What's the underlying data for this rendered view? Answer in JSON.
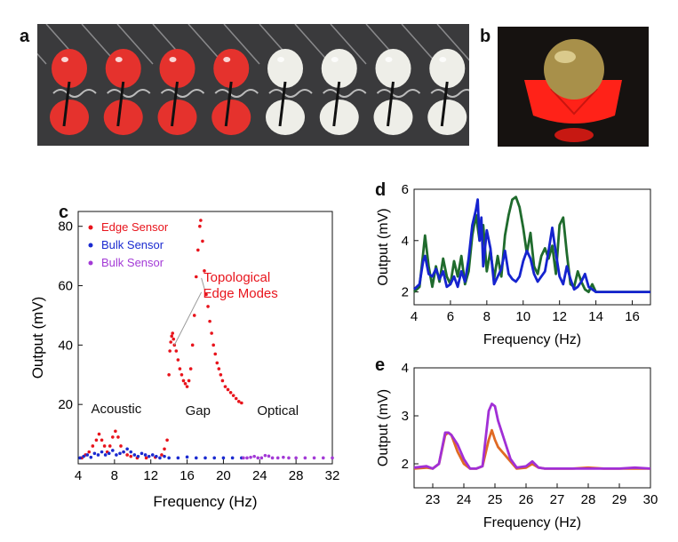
{
  "panels": {
    "a": {
      "letter": "a"
    },
    "b": {
      "letter": "b"
    },
    "c": {
      "letter": "c"
    },
    "d": {
      "letter": "d"
    },
    "e": {
      "letter": "e"
    }
  },
  "photos": {
    "a": {
      "background": "#3a3a3c",
      "robot_red": "#e5322d",
      "robot_white": "#eeeee8",
      "red_count": 4,
      "white_count": 4
    },
    "b": {
      "background": "#161210",
      "base_color": "#ff2218",
      "ball_color": "#a8904a"
    }
  },
  "chart_data": [
    {
      "id": "c",
      "type": "scatter",
      "xlabel": "Frequency (Hz)",
      "ylabel": "Output (mV)",
      "xlim": [
        4,
        32
      ],
      "ylim": [
        0,
        85
      ],
      "xticks": [
        4,
        8,
        12,
        16,
        20,
        24,
        28,
        32
      ],
      "yticks": [
        20,
        40,
        60,
        80
      ],
      "grid": false,
      "legend_position": "top-left",
      "series": [
        {
          "name": "Edge Sensor",
          "color": "#e8141c",
          "points": [
            [
              4.4,
              2
            ],
            [
              4.8,
              3
            ],
            [
              5.2,
              4
            ],
            [
              5.6,
              6
            ],
            [
              6.0,
              8
            ],
            [
              6.3,
              10
            ],
            [
              6.6,
              8
            ],
            [
              6.9,
              6
            ],
            [
              7.2,
              4
            ],
            [
              7.5,
              6
            ],
            [
              7.8,
              9
            ],
            [
              8.1,
              11
            ],
            [
              8.4,
              9
            ],
            [
              8.7,
              6
            ],
            [
              9.0,
              4
            ],
            [
              9.4,
              3
            ],
            [
              9.8,
              2.5
            ],
            [
              10.5,
              2
            ],
            [
              11.5,
              2
            ],
            [
              12.5,
              2.2
            ],
            [
              13.2,
              3
            ],
            [
              13.5,
              5
            ],
            [
              13.8,
              8
            ],
            [
              14.0,
              30
            ],
            [
              14.1,
              38
            ],
            [
              14.2,
              41
            ],
            [
              14.3,
              43
            ],
            [
              14.4,
              44
            ],
            [
              14.5,
              42
            ],
            [
              14.6,
              40
            ],
            [
              14.8,
              38
            ],
            [
              15.0,
              35
            ],
            [
              15.2,
              32
            ],
            [
              15.4,
              30
            ],
            [
              15.6,
              28
            ],
            [
              15.8,
              27
            ],
            [
              16.0,
              26
            ],
            [
              16.2,
              28
            ],
            [
              16.4,
              32
            ],
            [
              16.6,
              40
            ],
            [
              16.8,
              50
            ],
            [
              17.0,
              63
            ],
            [
              17.2,
              72
            ],
            [
              17.4,
              80
            ],
            [
              17.5,
              82
            ],
            [
              17.7,
              75
            ],
            [
              17.9,
              65
            ],
            [
              18.1,
              57
            ],
            [
              18.3,
              53
            ],
            [
              18.5,
              48
            ],
            [
              18.7,
              44
            ],
            [
              18.9,
              40
            ],
            [
              19.1,
              37
            ],
            [
              19.3,
              34
            ],
            [
              19.5,
              32
            ],
            [
              19.7,
              30
            ],
            [
              19.9,
              28
            ],
            [
              20.2,
              26
            ],
            [
              20.5,
              25
            ],
            [
              20.8,
              24
            ],
            [
              21.1,
              23
            ],
            [
              21.4,
              22
            ],
            [
              21.7,
              21
            ],
            [
              22.0,
              20.5
            ]
          ]
        },
        {
          "name": "Bulk Sensor",
          "color": "#1a2ad0",
          "points": [
            [
              4.2,
              2
            ],
            [
              4.6,
              2.5
            ],
            [
              5.0,
              3
            ],
            [
              5.4,
              2.2
            ],
            [
              5.8,
              3.5
            ],
            [
              6.2,
              3
            ],
            [
              6.6,
              4
            ],
            [
              7.0,
              3
            ],
            [
              7.4,
              3.5
            ],
            [
              7.8,
              4.5
            ],
            [
              8.2,
              3
            ],
            [
              8.6,
              3.5
            ],
            [
              9.0,
              4
            ],
            [
              9.4,
              5
            ],
            [
              9.8,
              4
            ],
            [
              10.2,
              3
            ],
            [
              10.6,
              2.5
            ],
            [
              11.0,
              3.5
            ],
            [
              11.4,
              3
            ],
            [
              11.8,
              2.5
            ],
            [
              12.2,
              3
            ],
            [
              12.6,
              2.5
            ],
            [
              13.0,
              2
            ],
            [
              13.5,
              2.5
            ],
            [
              14.0,
              2
            ],
            [
              15,
              2
            ],
            [
              16,
              2.3
            ],
            [
              17,
              2
            ],
            [
              18,
              2
            ],
            [
              19,
              2
            ],
            [
              20,
              2
            ],
            [
              21,
              2
            ],
            [
              22,
              2
            ]
          ]
        },
        {
          "name": "Bulk Sensor",
          "color": "#a33ad6",
          "points": [
            [
              22.2,
              2
            ],
            [
              22.6,
              2
            ],
            [
              23.0,
              2.2
            ],
            [
              23.4,
              2.5
            ],
            [
              23.8,
              2
            ],
            [
              24.2,
              2
            ],
            [
              24.6,
              2.8
            ],
            [
              25.0,
              2.6
            ],
            [
              25.4,
              2
            ],
            [
              26,
              2
            ],
            [
              26.6,
              2.2
            ],
            [
              27.2,
              2
            ],
            [
              28,
              2
            ],
            [
              29,
              2
            ],
            [
              30,
              2
            ],
            [
              31,
              2
            ],
            [
              32,
              2
            ]
          ]
        }
      ],
      "annotations": [
        {
          "text": "Topological",
          "pointer": [
            18.0,
            58
          ]
        },
        {
          "text": "Edge Modes",
          "pointer": [
            14.6,
            40
          ]
        },
        {
          "text": "Acoustic"
        },
        {
          "text": "Gap"
        },
        {
          "text": "Optical"
        }
      ]
    },
    {
      "id": "d",
      "type": "line",
      "xlabel": "Frequency (Hz)",
      "ylabel": "Output (mV)",
      "xlim": [
        4,
        17
      ],
      "ylim": [
        1.5,
        6
      ],
      "xticks": [
        4,
        6,
        8,
        10,
        12,
        14,
        16
      ],
      "yticks": [
        2,
        4,
        6
      ],
      "grid": false,
      "series": [
        {
          "color": "#1f6b2d",
          "x": [
            4.0,
            4.3,
            4.5,
            4.6,
            4.8,
            5.0,
            5.2,
            5.4,
            5.6,
            5.8,
            6.0,
            6.2,
            6.4,
            6.6,
            6.8,
            7.0,
            7.2,
            7.4,
            7.6,
            7.8,
            8.0,
            8.2,
            8.4,
            8.6,
            8.8,
            9.0,
            9.2,
            9.4,
            9.6,
            9.8,
            10.0,
            10.2,
            10.4,
            10.6,
            10.8,
            11.0,
            11.2,
            11.4,
            11.6,
            11.8,
            12.0,
            12.2,
            12.4,
            12.6,
            12.8,
            13.0,
            13.2,
            13.4,
            13.6,
            13.8,
            14.0,
            14.5,
            15,
            16,
            17
          ],
          "y": [
            2.0,
            2.2,
            3.5,
            4.2,
            3.0,
            2.2,
            3.0,
            2.4,
            3.3,
            2.6,
            2.3,
            3.2,
            2.6,
            3.4,
            2.3,
            2.8,
            4.2,
            5.0,
            4.0,
            4.6,
            2.8,
            3.6,
            2.5,
            3.4,
            2.6,
            4.2,
            5.0,
            5.6,
            5.7,
            5.3,
            4.5,
            3.5,
            4.3,
            3.0,
            2.7,
            3.4,
            3.7,
            3.3,
            3.8,
            2.7,
            4.6,
            4.9,
            3.5,
            2.3,
            2.2,
            2.8,
            2.4,
            2.1,
            2.0,
            2.3,
            2.0,
            2.0,
            2.0,
            2.0,
            2.0
          ]
        },
        {
          "color": "#1523cf",
          "x": [
            4.0,
            4.3,
            4.5,
            4.6,
            4.8,
            5.0,
            5.2,
            5.4,
            5.6,
            5.8,
            6.0,
            6.2,
            6.4,
            6.6,
            6.8,
            7.0,
            7.2,
            7.4,
            7.5,
            7.6,
            7.7,
            7.8,
            8.0,
            8.2,
            8.4,
            8.6,
            8.8,
            9.0,
            9.2,
            9.4,
            9.6,
            9.8,
            10.0,
            10.2,
            10.4,
            10.6,
            10.8,
            11.0,
            11.2,
            11.4,
            11.6,
            11.8,
            12.0,
            12.2,
            12.4,
            12.6,
            12.8,
            13.0,
            13.2,
            13.4,
            13.6,
            13.8,
            14.0,
            14.5,
            15,
            16,
            17
          ],
          "y": [
            2.1,
            2.3,
            3.2,
            3.4,
            2.7,
            2.6,
            2.9,
            2.5,
            2.8,
            2.2,
            2.3,
            2.6,
            2.2,
            2.8,
            2.4,
            3.3,
            4.6,
            5.2,
            5.6,
            4.0,
            4.9,
            3.0,
            4.4,
            3.7,
            2.3,
            2.6,
            2.9,
            3.6,
            2.7,
            2.5,
            2.4,
            2.6,
            3.2,
            3.6,
            3.3,
            2.7,
            2.4,
            2.6,
            2.8,
            3.6,
            4.5,
            3.5,
            2.6,
            2.3,
            3.0,
            2.5,
            2.1,
            2.2,
            2.4,
            2.7,
            2.2,
            2.1,
            2.0,
            2.0,
            2.0,
            2.0,
            2.0
          ]
        }
      ]
    },
    {
      "id": "e",
      "type": "line",
      "xlabel": "Frequency (Hz)",
      "ylabel": "Output (mV)",
      "xlim": [
        22.4,
        30
      ],
      "ylim": [
        1.5,
        4
      ],
      "xticks": [
        23,
        24,
        25,
        26,
        27,
        28,
        29,
        30
      ],
      "yticks": [
        2,
        3,
        4
      ],
      "grid": false,
      "series": [
        {
          "color": "#e06a24",
          "x": [
            22.4,
            22.8,
            23.0,
            23.2,
            23.4,
            23.5,
            23.6,
            23.8,
            24.0,
            24.2,
            24.4,
            24.6,
            24.8,
            24.9,
            25.0,
            25.1,
            25.3,
            25.5,
            25.7,
            26.0,
            26.2,
            26.4,
            26.6,
            26.8,
            27.0,
            27.5,
            28,
            28.5,
            29,
            29.5,
            30
          ],
          "y": [
            1.9,
            1.92,
            1.9,
            2.0,
            2.6,
            2.65,
            2.6,
            2.25,
            2.0,
            1.9,
            1.9,
            1.95,
            2.5,
            2.7,
            2.5,
            2.35,
            2.2,
            2.05,
            1.9,
            1.92,
            2.0,
            1.92,
            1.9,
            1.9,
            1.9,
            1.9,
            1.92,
            1.9,
            1.9,
            1.9,
            1.9
          ]
        },
        {
          "color": "#a12fd6",
          "x": [
            22.4,
            22.8,
            23.0,
            23.2,
            23.4,
            23.5,
            23.6,
            23.8,
            24.0,
            24.2,
            24.4,
            24.6,
            24.8,
            24.9,
            25.0,
            25.1,
            25.3,
            25.5,
            25.7,
            26.0,
            26.2,
            26.4,
            26.6,
            26.8,
            27.0,
            27.5,
            28,
            28.5,
            29,
            29.5,
            30
          ],
          "y": [
            1.92,
            1.95,
            1.9,
            2.0,
            2.65,
            2.65,
            2.6,
            2.4,
            2.1,
            1.9,
            1.9,
            1.95,
            3.1,
            3.25,
            3.2,
            2.9,
            2.5,
            2.1,
            1.92,
            1.95,
            2.05,
            1.92,
            1.9,
            1.9,
            1.9,
            1.9,
            1.9,
            1.9,
            1.9,
            1.92,
            1.9
          ]
        }
      ]
    }
  ]
}
